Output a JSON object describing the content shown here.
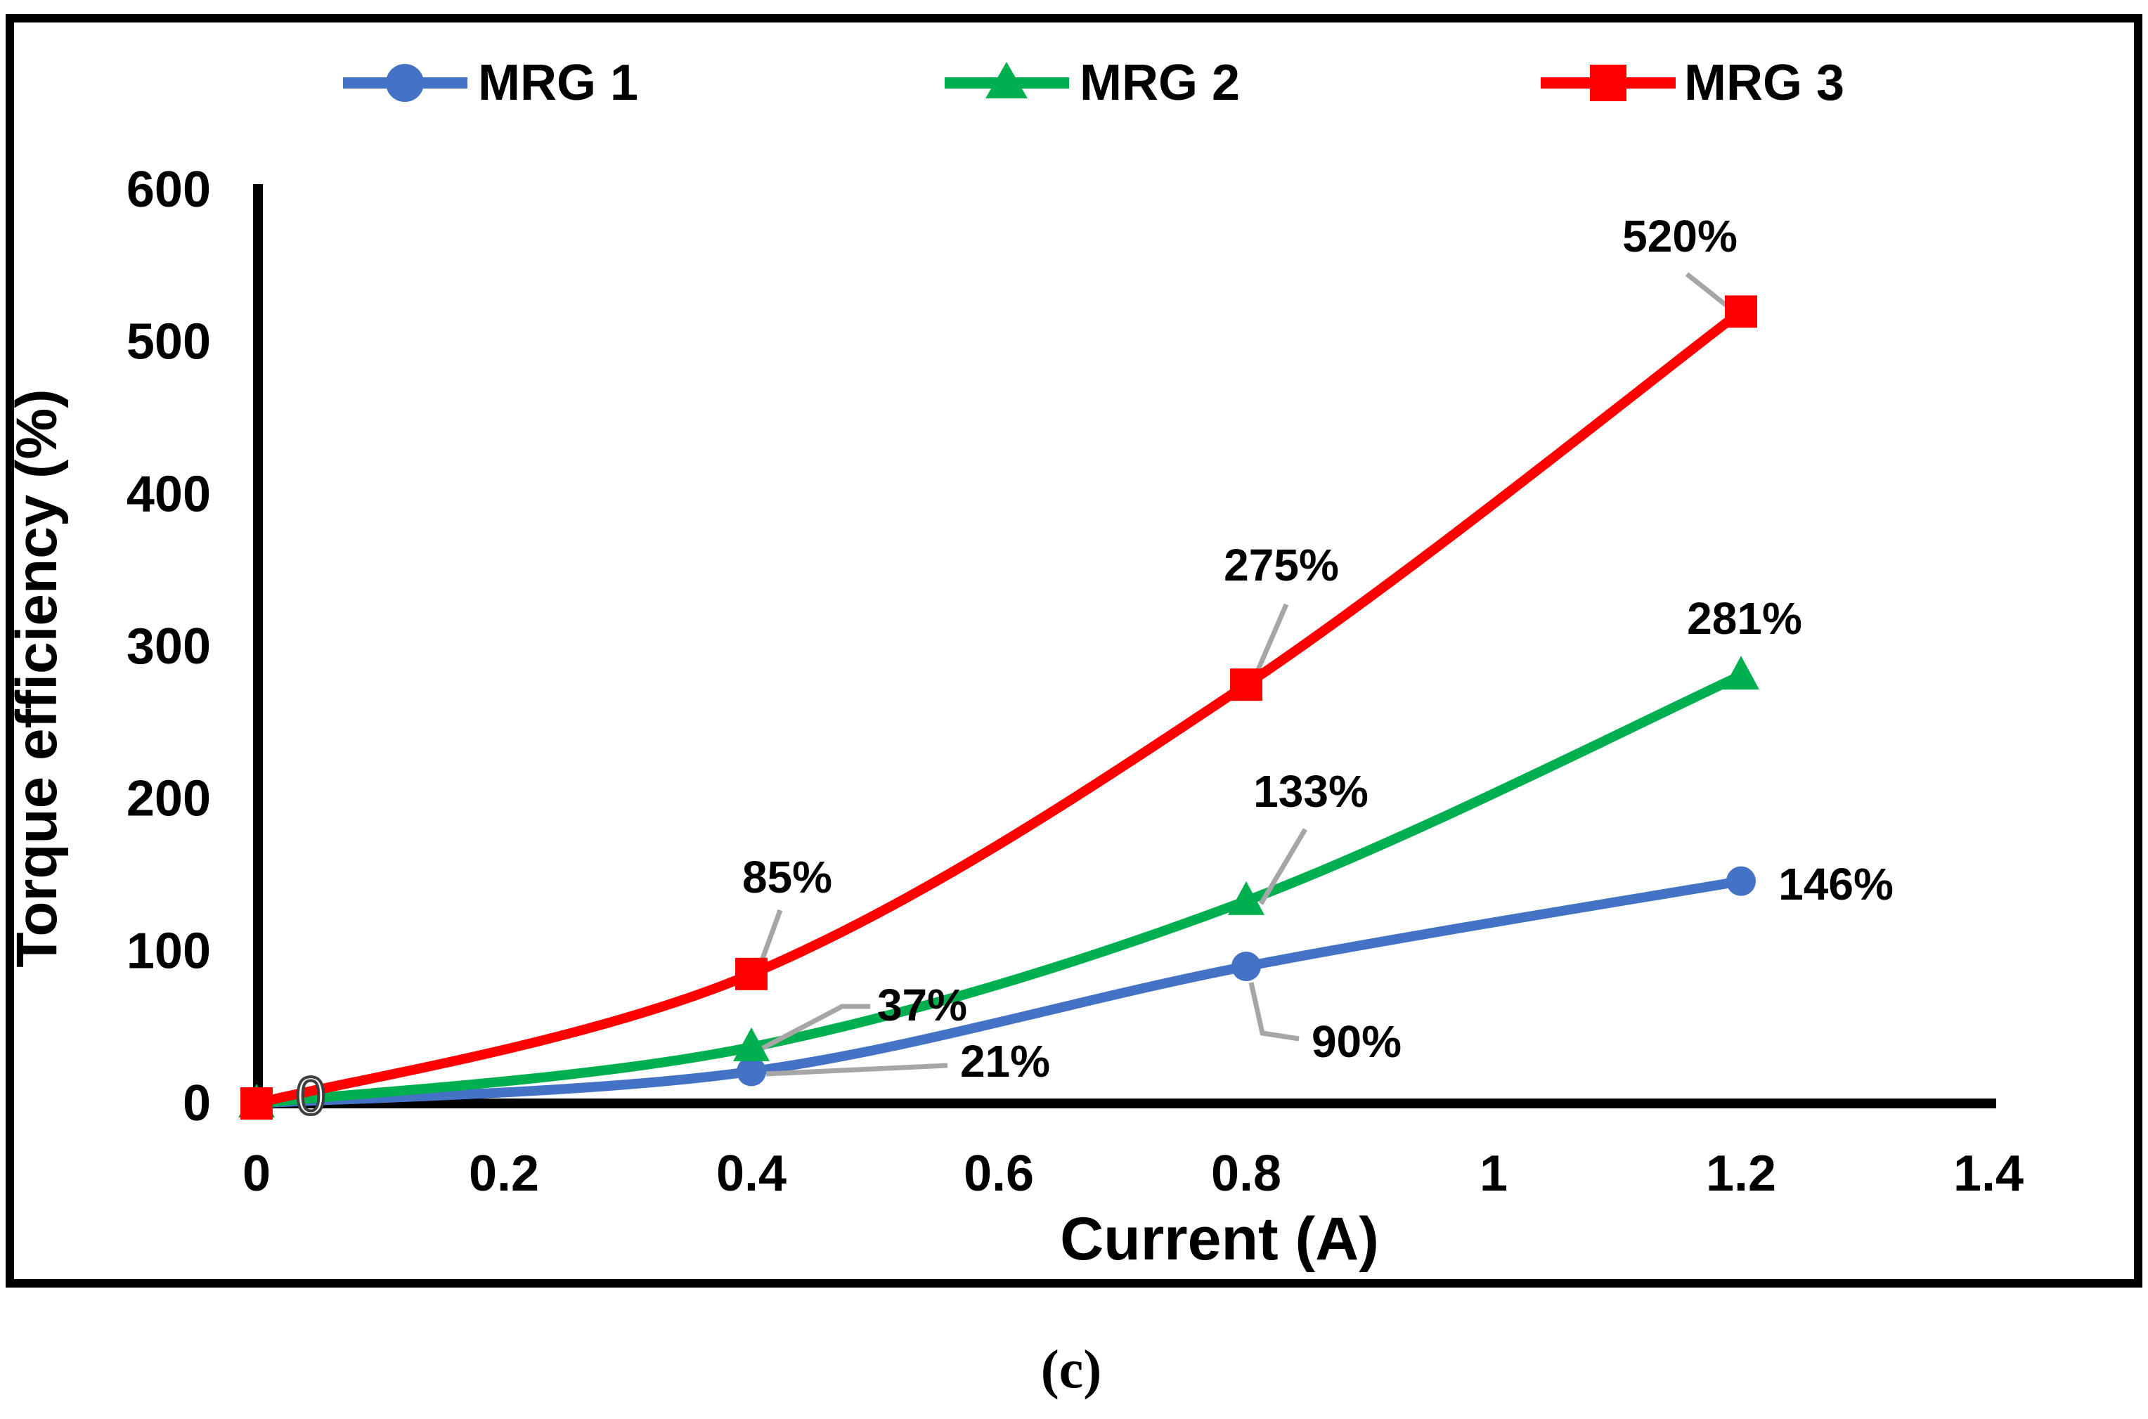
{
  "caption": "(c)",
  "legend": {
    "position": "top",
    "items": [
      {
        "label": "MRG 1",
        "color": "#4472C4",
        "marker": "circle"
      },
      {
        "label": "MRG 2",
        "color": "#00B050",
        "marker": "triangle"
      },
      {
        "label": "MRG 3",
        "color": "#FF0000",
        "marker": "square"
      }
    ]
  },
  "chart_data": {
    "type": "line",
    "title": "",
    "xlabel": "Current (A)",
    "ylabel": "Torque efficiency (%)",
    "xlim": [
      0,
      1.4
    ],
    "ylim": [
      0,
      600
    ],
    "grid": false,
    "smooth": true,
    "legend_position": "top",
    "x_ticks": [
      "0",
      "0.2",
      "0.4",
      "0.6",
      "0.8",
      "1",
      "1.2",
      "1.4"
    ],
    "x_tick_values": [
      0,
      0.2,
      0.4,
      0.6,
      0.8,
      1,
      1.2,
      1.4
    ],
    "y_ticks": [
      "0",
      "100",
      "200",
      "300",
      "400",
      "500",
      "600"
    ],
    "y_tick_values": [
      0,
      100,
      200,
      300,
      400,
      500,
      600
    ],
    "x": [
      0,
      0.4,
      0.8,
      1.2
    ],
    "series": [
      {
        "name": "MRG 1",
        "color": "#4472C4",
        "marker": "circle",
        "values": [
          0,
          21,
          90,
          146
        ],
        "point_labels": [
          "",
          "21%",
          "90%",
          "146%"
        ]
      },
      {
        "name": "MRG 2",
        "color": "#00B050",
        "marker": "triangle",
        "values": [
          0,
          37,
          133,
          281
        ],
        "point_labels": [
          "",
          "37%",
          "133%",
          "281%"
        ]
      },
      {
        "name": "MRG 3",
        "color": "#FF0000",
        "marker": "square",
        "values": [
          0,
          85,
          275,
          520
        ],
        "point_labels": [
          "0",
          "85%",
          "275%",
          "520%"
        ]
      }
    ],
    "leader_line_color": "#A6A6A6"
  }
}
